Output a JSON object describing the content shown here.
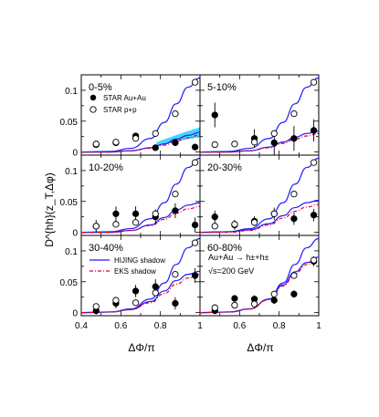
{
  "figure": {
    "ylabel": "D^{hh}(z_T,Δφ)",
    "xlabel": "ΔΦ/π",
    "x_ticks": [
      "0.4",
      "0.6",
      "0.8",
      "1"
    ],
    "y_ticks": [
      "0",
      "0.05",
      "0.1"
    ]
  },
  "legend_data": {
    "au": "STAR Au+Au",
    "pp": "STAR p+p"
  },
  "legend_models": {
    "hijing": "HIJING shadow",
    "eks": "EKS shadow"
  },
  "annotation": {
    "reaction": "Au+Au → h±+h±",
    "energy": "√s=200 GeV"
  },
  "colors": {
    "data": "#000000",
    "hijing": "#1a1aff",
    "eks": "#e0002a",
    "band": "#00c8ff"
  },
  "chart_data": [
    {
      "type": "scatter",
      "title": "0-5%",
      "xlim": [
        0.4,
        1.0
      ],
      "ylim": [
        -0.005,
        0.125
      ],
      "x": [
        0.475,
        0.575,
        0.675,
        0.775,
        0.875,
        0.975
      ],
      "series": [
        {
          "name": "STAR Au+Au",
          "marker": "filled",
          "values": [
            0.012,
            0.015,
            0.026,
            0.007,
            0.015,
            0.008
          ],
          "errors": [
            0.004,
            0.004,
            0.005,
            0.004,
            0.005,
            0.004
          ]
        },
        {
          "name": "STAR p+p",
          "marker": "open",
          "values": [
            0.013,
            0.016,
            0.022,
            0.03,
            0.062,
            0.113
          ],
          "errors": [
            0.002,
            0.002,
            0.002,
            0.003,
            0.003,
            0.005
          ]
        },
        {
          "name": "HIJING shadow",
          "line": "solid",
          "upper": true,
          "x": [
            0.4,
            0.55,
            0.65,
            0.75,
            0.82,
            0.88,
            0.94,
            1.0
          ],
          "values": [
            0.0,
            0.001,
            0.006,
            0.022,
            0.048,
            0.078,
            0.105,
            0.12
          ]
        },
        {
          "name": "HIJING shadow",
          "line": "solid",
          "x": [
            0.4,
            0.55,
            0.65,
            0.75,
            0.82,
            0.88,
            0.94,
            1.0
          ],
          "values": [
            0.0,
            0.0,
            0.002,
            0.007,
            0.013,
            0.021,
            0.027,
            0.032
          ]
        },
        {
          "name": "EKS shadow",
          "line": "dashed",
          "x": [
            0.4,
            0.55,
            0.65,
            0.75,
            0.82,
            0.88,
            0.94,
            1.0
          ],
          "values": [
            0.0,
            0.0,
            0.002,
            0.006,
            0.011,
            0.018,
            0.023,
            0.028
          ]
        },
        {
          "name": "band",
          "band": true,
          "x": [
            0.78,
            0.85,
            0.92,
            1.0
          ],
          "low": [
            0.01,
            0.015,
            0.02,
            0.024
          ],
          "high": [
            0.016,
            0.024,
            0.032,
            0.04
          ]
        }
      ]
    },
    {
      "type": "scatter",
      "title": "5-10%",
      "xlim": [
        0.4,
        1.0
      ],
      "ylim": [
        -0.005,
        0.125
      ],
      "x": [
        0.475,
        0.575,
        0.675,
        0.775,
        0.875,
        0.975
      ],
      "series": [
        {
          "name": "STAR Au+Au",
          "marker": "filled",
          "values": [
            0.06,
            null,
            0.022,
            0.015,
            0.022,
            0.035
          ],
          "errors": [
            0.02,
            0,
            0.015,
            0.02,
            0.02,
            0.018
          ]
        },
        {
          "name": "STAR p+p",
          "marker": "open",
          "values": [
            0.012,
            0.013,
            0.016,
            0.03,
            0.062,
            0.113
          ],
          "errors": [
            0.002,
            0.002,
            0.002,
            0.003,
            0.003,
            0.005
          ]
        },
        {
          "name": "HIJING shadow",
          "line": "solid",
          "upper": true,
          "x": [
            0.4,
            0.55,
            0.65,
            0.75,
            0.82,
            0.88,
            0.94,
            1.0
          ],
          "values": [
            0.0,
            0.001,
            0.006,
            0.022,
            0.048,
            0.078,
            0.105,
            0.12
          ]
        },
        {
          "name": "HIJING shadow",
          "line": "solid",
          "x": [
            0.4,
            0.55,
            0.65,
            0.75,
            0.82,
            0.88,
            0.94,
            1.0
          ],
          "values": [
            0.0,
            0.0,
            0.002,
            0.008,
            0.016,
            0.024,
            0.03,
            0.034
          ]
        },
        {
          "name": "EKS shadow",
          "line": "dashed",
          "x": [
            0.4,
            0.55,
            0.65,
            0.75,
            0.82,
            0.88,
            0.94,
            1.0
          ],
          "values": [
            0.0,
            0.0,
            0.002,
            0.007,
            0.014,
            0.021,
            0.026,
            0.03
          ]
        }
      ]
    },
    {
      "type": "scatter",
      "title": "10-20%",
      "xlim": [
        0.4,
        1.0
      ],
      "ylim": [
        -0.005,
        0.125
      ],
      "x": [
        0.475,
        0.575,
        0.675,
        0.775,
        0.875,
        0.975
      ],
      "series": [
        {
          "name": "STAR Au+Au",
          "marker": "filled",
          "values": [
            0.01,
            0.03,
            0.03,
            0.025,
            0.035,
            0.012
          ],
          "errors": [
            0.01,
            0.012,
            0.012,
            0.012,
            0.012,
            0.012
          ]
        },
        {
          "name": "STAR p+p",
          "marker": "open",
          "values": [
            0.01,
            0.013,
            0.016,
            0.03,
            0.062,
            0.113
          ],
          "errors": [
            0.002,
            0.002,
            0.002,
            0.003,
            0.003,
            0.005
          ]
        },
        {
          "name": "HIJING shadow",
          "line": "solid",
          "upper": true,
          "x": [
            0.4,
            0.55,
            0.65,
            0.75,
            0.82,
            0.88,
            0.94,
            1.0
          ],
          "values": [
            0.0,
            0.001,
            0.006,
            0.022,
            0.048,
            0.078,
            0.105,
            0.12
          ]
        },
        {
          "name": "HIJING shadow",
          "line": "solid",
          "x": [
            0.4,
            0.55,
            0.65,
            0.75,
            0.82,
            0.88,
            0.94,
            1.0
          ],
          "values": [
            0.0,
            0.0,
            0.003,
            0.012,
            0.024,
            0.036,
            0.044,
            0.048
          ]
        },
        {
          "name": "EKS shadow",
          "line": "dashed",
          "x": [
            0.4,
            0.55,
            0.65,
            0.75,
            0.82,
            0.88,
            0.94,
            1.0
          ],
          "values": [
            0.0,
            0.0,
            0.003,
            0.011,
            0.021,
            0.031,
            0.038,
            0.042
          ]
        }
      ]
    },
    {
      "type": "scatter",
      "title": "20-30%",
      "xlim": [
        0.4,
        1.0
      ],
      "ylim": [
        -0.005,
        0.125
      ],
      "x": [
        0.475,
        0.575,
        0.675,
        0.775,
        0.875,
        0.975
      ],
      "series": [
        {
          "name": "STAR Au+Au",
          "marker": "filled",
          "values": [
            0.025,
            0.012,
            0.018,
            0.03,
            0.022,
            0.028
          ],
          "errors": [
            0.01,
            0.008,
            0.008,
            0.01,
            0.01,
            0.01
          ]
        },
        {
          "name": "STAR p+p",
          "marker": "open",
          "values": [
            0.01,
            0.013,
            0.016,
            0.03,
            0.062,
            0.113
          ],
          "errors": [
            0.002,
            0.002,
            0.002,
            0.003,
            0.003,
            0.005
          ]
        },
        {
          "name": "HIJING shadow",
          "line": "solid",
          "upper": true,
          "x": [
            0.4,
            0.55,
            0.65,
            0.75,
            0.82,
            0.88,
            0.94,
            1.0
          ],
          "values": [
            0.0,
            0.001,
            0.006,
            0.022,
            0.048,
            0.078,
            0.105,
            0.12
          ]
        },
        {
          "name": "HIJING shadow",
          "line": "solid",
          "x": [
            0.4,
            0.55,
            0.65,
            0.75,
            0.82,
            0.88,
            0.94,
            1.0
          ],
          "values": [
            0.0,
            0.001,
            0.004,
            0.014,
            0.027,
            0.04,
            0.048,
            0.052
          ]
        },
        {
          "name": "EKS shadow",
          "line": "dashed",
          "x": [
            0.4,
            0.55,
            0.65,
            0.75,
            0.82,
            0.88,
            0.94,
            1.0
          ],
          "values": [
            0.0,
            0.0,
            0.003,
            0.012,
            0.023,
            0.034,
            0.041,
            0.045
          ]
        }
      ]
    },
    {
      "type": "scatter",
      "title": "30-40%",
      "xlim": [
        0.4,
        1.0
      ],
      "ylim": [
        -0.005,
        0.125
      ],
      "x": [
        0.475,
        0.575,
        0.675,
        0.775,
        0.875,
        0.975
      ],
      "series": [
        {
          "name": "STAR Au+Au",
          "marker": "filled",
          "values": [
            0.003,
            0.015,
            0.035,
            0.042,
            0.015,
            0.06
          ],
          "errors": [
            0.006,
            0.008,
            0.01,
            0.012,
            0.01,
            0.012
          ]
        },
        {
          "name": "STAR p+p",
          "marker": "open",
          "values": [
            0.01,
            0.02,
            0.016,
            0.032,
            0.062,
            0.113
          ],
          "errors": [
            0.002,
            0.003,
            0.002,
            0.003,
            0.003,
            0.005
          ]
        },
        {
          "name": "HIJING shadow",
          "line": "solid",
          "upper": true,
          "x": [
            0.4,
            0.55,
            0.65,
            0.75,
            0.82,
            0.88,
            0.94,
            1.0
          ],
          "values": [
            0.0,
            0.001,
            0.006,
            0.022,
            0.048,
            0.078,
            0.105,
            0.12
          ]
        },
        {
          "name": "HIJING shadow",
          "line": "solid",
          "x": [
            0.4,
            0.55,
            0.65,
            0.75,
            0.82,
            0.88,
            0.94,
            1.0
          ],
          "values": [
            0.0,
            0.001,
            0.005,
            0.018,
            0.035,
            0.052,
            0.062,
            0.067
          ]
        },
        {
          "name": "EKS shadow",
          "line": "dashed",
          "x": [
            0.4,
            0.55,
            0.65,
            0.75,
            0.82,
            0.88,
            0.94,
            1.0
          ],
          "values": [
            0.0,
            0.001,
            0.005,
            0.016,
            0.031,
            0.046,
            0.056,
            0.062
          ]
        }
      ]
    },
    {
      "type": "scatter",
      "title": "60-80%",
      "xlim": [
        0.4,
        1.0
      ],
      "ylim": [
        -0.005,
        0.125
      ],
      "x": [
        0.475,
        0.575,
        0.675,
        0.775,
        0.875,
        0.975
      ],
      "series": [
        {
          "name": "STAR Au+Au",
          "marker": "filled",
          "values": [
            0.003,
            0.023,
            0.022,
            0.02,
            0.03,
            0.083
          ],
          "errors": [
            0.004,
            0.005,
            0.006,
            0.006,
            0.006,
            0.008
          ]
        },
        {
          "name": "STAR p+p",
          "marker": "open",
          "values": [
            0.008,
            0.012,
            0.014,
            0.03,
            0.06,
            0.085
          ],
          "errors": [
            0.002,
            0.002,
            0.002,
            0.003,
            0.003,
            0.004
          ]
        },
        {
          "name": "HIJING shadow",
          "line": "solid",
          "upper": true,
          "x": [
            0.4,
            0.55,
            0.65,
            0.75,
            0.82,
            0.88,
            0.94,
            1.0
          ],
          "values": [
            0.0,
            0.001,
            0.006,
            0.022,
            0.048,
            0.078,
            0.105,
            0.12
          ]
        },
        {
          "name": "HIJING shadow",
          "line": "solid",
          "x": [
            0.4,
            0.55,
            0.65,
            0.75,
            0.82,
            0.88,
            0.94,
            1.0
          ],
          "values": [
            0.0,
            0.001,
            0.006,
            0.022,
            0.045,
            0.066,
            0.081,
            0.09
          ]
        },
        {
          "name": "EKS shadow",
          "line": "dashed",
          "x": [
            0.4,
            0.55,
            0.65,
            0.75,
            0.82,
            0.88,
            0.94,
            1.0
          ],
          "values": [
            0.0,
            0.001,
            0.006,
            0.021,
            0.043,
            0.063,
            0.078,
            0.087
          ]
        }
      ]
    }
  ]
}
